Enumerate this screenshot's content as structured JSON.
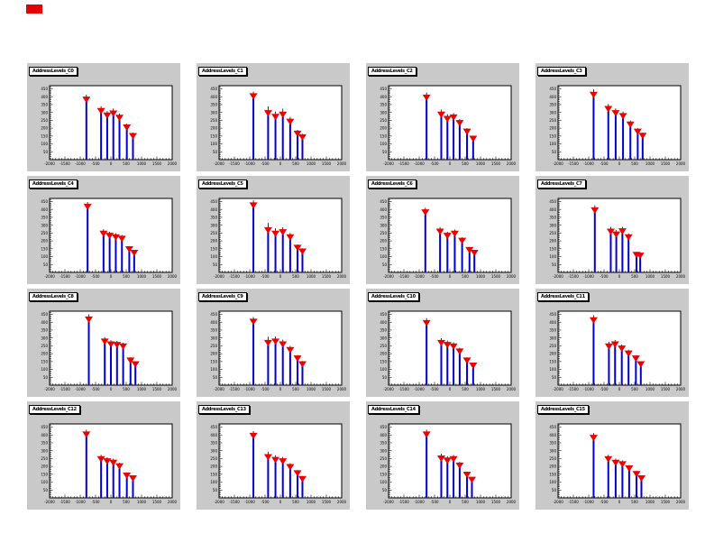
{
  "decorations": {
    "corner_marker_color": "#e60000"
  },
  "colors": {
    "page_bg": "#ffffff",
    "pad_bg": "#c9c9c9",
    "frame_bg": "#ffffff",
    "frame_border": "#000000",
    "stem": "#0000d0",
    "marker": "#ef0000",
    "error_bar": "#000000",
    "tick": "#000000"
  },
  "axes": {
    "x_ticks": [
      "-2000",
      "-1500",
      "-1000",
      "-500",
      "0",
      "500",
      "1000",
      "1500",
      "2000"
    ],
    "y_ticks": [
      "50",
      "100",
      "150",
      "200",
      "250",
      "300",
      "350",
      "400",
      "450"
    ]
  },
  "chart_data": [
    {
      "type": "scatter",
      "stems": true,
      "marker": "triangle-down",
      "title": "AddressLevels_C0",
      "xlim": [
        -2000,
        2000
      ],
      "ylim": [
        0,
        470
      ],
      "x": [
        -800,
        -320,
        -120,
        80,
        280,
        520,
        720
      ],
      "y": [
        383,
        311,
        282,
        295,
        268,
        206,
        152
      ],
      "yerr": [
        30,
        28,
        26,
        30,
        25,
        22,
        20
      ]
    },
    {
      "type": "scatter",
      "stems": true,
      "marker": "triangle-down",
      "title": "AddressLevels_C1",
      "xlim": [
        -2000,
        2000
      ],
      "ylim": [
        0,
        470
      ],
      "x": [
        -880,
        -400,
        -160,
        80,
        320,
        560,
        720
      ],
      "y": [
        405,
        297,
        274,
        288,
        243,
        167,
        144
      ],
      "yerr": [
        28,
        42,
        32,
        36,
        28,
        22,
        20
      ]
    },
    {
      "type": "scatter",
      "stems": true,
      "marker": "triangle-down",
      "title": "AddressLevels_C2",
      "xlim": [
        -2000,
        2000
      ],
      "ylim": [
        0,
        470
      ],
      "x": [
        -760,
        -280,
        -80,
        120,
        320,
        560,
        760
      ],
      "y": [
        396,
        288,
        261,
        270,
        234,
        180,
        135
      ],
      "yerr": [
        30,
        30,
        28,
        26,
        24,
        20,
        18
      ]
    },
    {
      "type": "scatter",
      "stems": true,
      "marker": "triangle-down",
      "title": "AddressLevels_C3",
      "xlim": [
        -2000,
        2000
      ],
      "ylim": [
        0,
        470
      ],
      "x": [
        -840,
        -360,
        -120,
        120,
        360,
        600,
        760
      ],
      "y": [
        414,
        324,
        297,
        279,
        225,
        180,
        153
      ],
      "yerr": [
        32,
        30,
        28,
        26,
        24,
        20,
        18
      ]
    },
    {
      "type": "scatter",
      "stems": true,
      "marker": "triangle-down",
      "title": "AddressLevels_C4",
      "xlim": [
        -2000,
        2000
      ],
      "ylim": [
        0,
        470
      ],
      "x": [
        -760,
        -240,
        -40,
        160,
        360,
        600,
        760
      ],
      "y": [
        419,
        248,
        234,
        225,
        216,
        149,
        126
      ],
      "yerr": [
        28,
        26,
        24,
        24,
        22,
        18,
        16
      ]
    },
    {
      "type": "scatter",
      "stems": true,
      "marker": "triangle-down",
      "title": "AddressLevels_C5",
      "xlim": [
        -2000,
        2000
      ],
      "ylim": [
        0,
        470
      ],
      "x": [
        -880,
        -400,
        -160,
        80,
        320,
        560,
        720
      ],
      "y": [
        428,
        270,
        248,
        257,
        225,
        158,
        135
      ],
      "yerr": [
        30,
        44,
        32,
        30,
        26,
        20,
        18
      ]
    },
    {
      "type": "scatter",
      "stems": true,
      "marker": "triangle-down",
      "title": "AddressLevels_C6",
      "xlim": [
        -2000,
        2000
      ],
      "ylim": [
        0,
        470
      ],
      "x": [
        -800,
        -320,
        -80,
        160,
        400,
        640,
        800
      ],
      "y": [
        383,
        261,
        234,
        248,
        203,
        144,
        126
      ],
      "yerr": [
        28,
        26,
        24,
        24,
        20,
        18,
        16
      ]
    },
    {
      "type": "scatter",
      "stems": true,
      "marker": "triangle-down",
      "title": "AddressLevels_C7",
      "xlim": [
        -2000,
        2000
      ],
      "ylim": [
        0,
        470
      ],
      "x": [
        -800,
        -280,
        -100,
        100,
        300,
        560,
        680
      ],
      "y": [
        396,
        261,
        243,
        263,
        225,
        113,
        108
      ],
      "yerr": [
        30,
        28,
        26,
        26,
        22,
        18,
        16
      ]
    },
    {
      "type": "scatter",
      "stems": true,
      "marker": "triangle-down",
      "title": "AddressLevels_C8",
      "xlim": [
        -2000,
        2000
      ],
      "ylim": [
        0,
        470
      ],
      "x": [
        -720,
        -200,
        0,
        200,
        400,
        640,
        800
      ],
      "y": [
        419,
        279,
        261,
        257,
        248,
        158,
        135
      ],
      "yerr": [
        30,
        26,
        24,
        24,
        22,
        18,
        16
      ]
    },
    {
      "type": "scatter",
      "stems": true,
      "marker": "triangle-down",
      "title": "AddressLevels_C9",
      "xlim": [
        -2000,
        2000
      ],
      "ylim": [
        0,
        470
      ],
      "x": [
        -880,
        -400,
        -160,
        80,
        320,
        560,
        720
      ],
      "y": [
        405,
        270,
        279,
        261,
        225,
        171,
        135
      ],
      "yerr": [
        28,
        38,
        30,
        28,
        24,
        20,
        18
      ]
    },
    {
      "type": "scatter",
      "stems": true,
      "marker": "triangle-down",
      "title": "AddressLevels_C10",
      "xlim": [
        -2000,
        2000
      ],
      "ylim": [
        0,
        470
      ],
      "x": [
        -760,
        -280,
        -80,
        120,
        320,
        560,
        760
      ],
      "y": [
        396,
        270,
        257,
        248,
        216,
        158,
        126
      ],
      "yerr": [
        30,
        28,
        26,
        24,
        22,
        18,
        16
      ]
    },
    {
      "type": "scatter",
      "stems": true,
      "marker": "triangle-down",
      "title": "AddressLevels_C11",
      "xlim": [
        -2000,
        2000
      ],
      "ylim": [
        0,
        470
      ],
      "x": [
        -840,
        -340,
        -140,
        80,
        300,
        540,
        700
      ],
      "y": [
        414,
        248,
        261,
        234,
        203,
        171,
        135
      ],
      "yerr": [
        30,
        28,
        26,
        24,
        22,
        18,
        16
      ]
    },
    {
      "type": "scatter",
      "stems": true,
      "marker": "triangle-down",
      "title": "AddressLevels_C12",
      "xlim": [
        -2000,
        2000
      ],
      "ylim": [
        0,
        470
      ],
      "x": [
        -800,
        -320,
        -120,
        80,
        280,
        520,
        720
      ],
      "y": [
        405,
        248,
        234,
        225,
        203,
        144,
        126
      ],
      "yerr": [
        28,
        26,
        24,
        24,
        20,
        18,
        16
      ]
    },
    {
      "type": "scatter",
      "stems": true,
      "marker": "triangle-down",
      "title": "AddressLevels_C13",
      "xlim": [
        -2000,
        2000
      ],
      "ylim": [
        0,
        470
      ],
      "x": [
        -880,
        -400,
        -160,
        80,
        320,
        560,
        720
      ],
      "y": [
        396,
        261,
        243,
        234,
        198,
        158,
        122
      ],
      "yerr": [
        28,
        32,
        28,
        26,
        22,
        18,
        16
      ]
    },
    {
      "type": "scatter",
      "stems": true,
      "marker": "triangle-down",
      "title": "AddressLevels_C14",
      "xlim": [
        -2000,
        2000
      ],
      "ylim": [
        0,
        470
      ],
      "x": [
        -760,
        -280,
        -80,
        120,
        320,
        560,
        720
      ],
      "y": [
        405,
        252,
        239,
        248,
        207,
        149,
        117
      ],
      "yerr": [
        28,
        28,
        26,
        24,
        22,
        18,
        16
      ]
    },
    {
      "type": "scatter",
      "stems": true,
      "marker": "triangle-down",
      "title": "AddressLevels_C15",
      "xlim": [
        -2000,
        2000
      ],
      "ylim": [
        0,
        470
      ],
      "x": [
        -840,
        -360,
        -120,
        100,
        320,
        560,
        720
      ],
      "y": [
        383,
        248,
        225,
        216,
        189,
        153,
        126
      ],
      "yerr": [
        28,
        26,
        24,
        22,
        20,
        18,
        16
      ]
    }
  ]
}
